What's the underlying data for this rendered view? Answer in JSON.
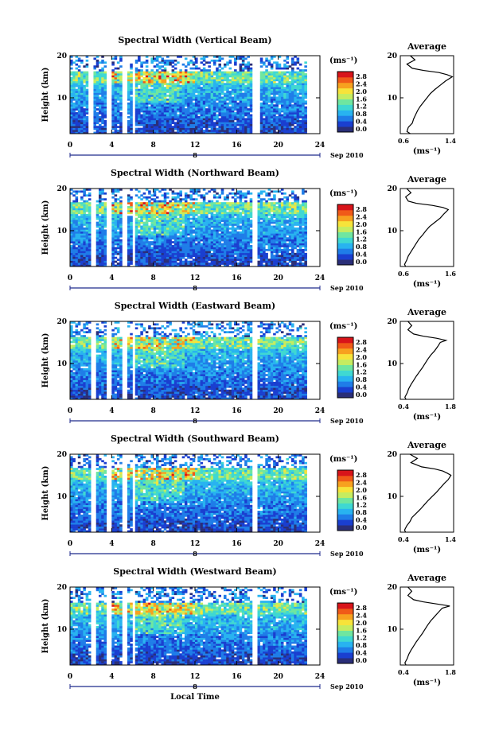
{
  "x_axis_label": "Local Time",
  "date_label": "Sep 2010",
  "date_center_label": "8",
  "y_axis_label": "Height (km)",
  "colorbar_unit": "(ms⁻¹)",
  "colorbar_ticks": [
    "2.8",
    "2.4",
    "2.0",
    "1.6",
    "1.2",
    "0.8",
    "0.4",
    "0.0"
  ],
  "average_title": "Average",
  "average_xlabel": "(ms⁻¹)",
  "colors": {
    "colormap": [
      "#2a2e78",
      "#1a3fd0",
      "#1f7de8",
      "#28b3f0",
      "#3fd8d2",
      "#6fe6a0",
      "#c6ec60",
      "#f7e33a",
      "#f7a11f",
      "#f05a18",
      "#d8141a"
    ],
    "profile_line": "#000000"
  },
  "chart_data": [
    {
      "type": "heatmap",
      "title": "Spectral Width (Vertical Beam)",
      "xlim": [
        0,
        24
      ],
      "ylim": [
        1.5,
        20
      ],
      "x_ticks": [
        0,
        4,
        8,
        12,
        16,
        20,
        24
      ],
      "y_ticks": [
        10,
        20
      ],
      "value_range": [
        0.0,
        3.0
      ],
      "data_gaps": [
        [
          1.8,
          2.2
        ],
        [
          3.6,
          4.0
        ],
        [
          5.0,
          5.4
        ],
        [
          5.9,
          6.2
        ],
        [
          17.6,
          18.2
        ]
      ],
      "profile": {
        "title": "Average",
        "xlim": [
          0.6,
          1.4
        ],
        "x_ticks": [
          "0.6",
          "1.4"
        ],
        "height": [
          1.5,
          2,
          3,
          4,
          5,
          6,
          7,
          8,
          9,
          10,
          11,
          12,
          13,
          14,
          15,
          15.5,
          16,
          16.5,
          17,
          18,
          19,
          20
        ],
        "value": [
          0.75,
          0.7,
          0.72,
          0.78,
          0.8,
          0.83,
          0.86,
          0.9,
          0.95,
          1.0,
          1.05,
          1.12,
          1.2,
          1.28,
          1.38,
          1.3,
          1.18,
          0.95,
          0.78,
          0.7,
          0.82,
          0.75
        ]
      }
    },
    {
      "type": "heatmap",
      "title": "Spectral Width (Northward Beam)",
      "xlim": [
        0,
        24
      ],
      "ylim": [
        1.5,
        20
      ],
      "x_ticks": [
        0,
        4,
        8,
        12,
        16,
        20,
        24
      ],
      "y_ticks": [
        10,
        20
      ],
      "value_range": [
        0.0,
        3.0
      ],
      "data_gaps": [
        [
          2.0,
          2.4
        ],
        [
          3.6,
          4.0
        ],
        [
          5.0,
          5.4
        ],
        [
          5.9,
          6.2
        ],
        [
          17.6,
          18.0
        ]
      ],
      "profile": {
        "title": "Average",
        "xlim": [
          0.6,
          1.6
        ],
        "x_ticks": [
          "0.6",
          "1.6"
        ],
        "height": [
          1.5,
          2,
          3,
          4,
          5,
          6,
          7,
          8,
          9,
          10,
          11,
          12,
          13,
          14,
          15,
          15.5,
          16,
          16.5,
          17,
          18,
          19,
          20
        ],
        "value": [
          0.7,
          0.68,
          0.72,
          0.75,
          0.8,
          0.85,
          0.9,
          0.95,
          1.02,
          1.08,
          1.15,
          1.25,
          1.35,
          1.42,
          1.5,
          1.4,
          1.2,
          0.9,
          0.75,
          0.7,
          0.8,
          0.72
        ]
      }
    },
    {
      "type": "heatmap",
      "title": "Spectral Width (Eastward Beam)",
      "xlim": [
        0,
        24
      ],
      "ylim": [
        1.5,
        20
      ],
      "x_ticks": [
        0,
        4,
        8,
        12,
        16,
        20,
        24
      ],
      "y_ticks": [
        10,
        20
      ],
      "value_range": [
        0.0,
        3.0
      ],
      "data_gaps": [
        [
          2.0,
          2.4
        ],
        [
          3.6,
          4.0
        ],
        [
          5.0,
          5.4
        ],
        [
          5.9,
          6.2
        ],
        [
          17.6,
          18.0
        ]
      ],
      "profile": {
        "title": "Average",
        "xlim": [
          0.4,
          1.8
        ],
        "x_ticks": [
          "0.4",
          "1.8"
        ],
        "height": [
          1.5,
          2,
          3,
          4,
          5,
          6,
          7,
          8,
          9,
          10,
          11,
          12,
          13,
          14,
          15,
          15.5,
          16,
          16.5,
          17,
          18,
          19,
          20
        ],
        "value": [
          0.55,
          0.52,
          0.58,
          0.62,
          0.68,
          0.75,
          0.82,
          0.9,
          0.98,
          1.05,
          1.12,
          1.2,
          1.3,
          1.38,
          1.45,
          1.6,
          1.35,
          1.0,
          0.75,
          0.6,
          0.7,
          0.6
        ]
      }
    },
    {
      "type": "heatmap",
      "title": "Spectral Width (Southward Beam)",
      "xlim": [
        0,
        24
      ],
      "ylim": [
        1.5,
        20
      ],
      "x_ticks": [
        0,
        4,
        8,
        12,
        16,
        20,
        24
      ],
      "y_ticks": [
        10,
        20
      ],
      "value_range": [
        0.0,
        3.0
      ],
      "data_gaps": [
        [
          2.0,
          2.4
        ],
        [
          3.6,
          4.0
        ],
        [
          5.0,
          5.4
        ],
        [
          5.9,
          6.2
        ],
        [
          17.6,
          18.0
        ]
      ],
      "profile": {
        "title": "Average",
        "xlim": [
          0.4,
          1.4
        ],
        "x_ticks": [
          "0.4",
          "1.4"
        ],
        "height": [
          1.5,
          2,
          3,
          4,
          5,
          6,
          7,
          8,
          9,
          10,
          11,
          12,
          13,
          14,
          15,
          15.5,
          16,
          16.5,
          17,
          18,
          19,
          20
        ],
        "value": [
          0.5,
          0.48,
          0.52,
          0.58,
          0.62,
          0.7,
          0.78,
          0.85,
          0.92,
          1.0,
          1.08,
          1.15,
          1.22,
          1.3,
          1.35,
          1.28,
          1.2,
          1.05,
          0.8,
          0.6,
          0.72,
          0.58
        ]
      }
    },
    {
      "type": "heatmap",
      "title": "Spectral Width (Westward Beam)",
      "xlim": [
        0,
        24
      ],
      "ylim": [
        1.5,
        20
      ],
      "x_ticks": [
        0,
        4,
        8,
        12,
        16,
        20,
        24
      ],
      "y_ticks": [
        10,
        20
      ],
      "value_range": [
        0.0,
        3.0
      ],
      "data_gaps": [
        [
          2.0,
          2.4
        ],
        [
          3.6,
          4.0
        ],
        [
          5.0,
          5.4
        ],
        [
          5.9,
          6.2
        ],
        [
          17.6,
          18.0
        ]
      ],
      "profile": {
        "title": "Average",
        "xlim": [
          0.4,
          1.8
        ],
        "x_ticks": [
          "0.4",
          "1.8"
        ],
        "height": [
          1.5,
          2,
          3,
          4,
          5,
          6,
          7,
          8,
          9,
          10,
          11,
          12,
          13,
          14,
          15,
          15.5,
          16,
          16.5,
          17,
          18,
          19,
          20
        ],
        "value": [
          0.55,
          0.52,
          0.58,
          0.62,
          0.68,
          0.75,
          0.82,
          0.9,
          0.98,
          1.05,
          1.12,
          1.2,
          1.3,
          1.4,
          1.5,
          1.7,
          1.35,
          1.0,
          0.75,
          0.6,
          0.7,
          0.6
        ]
      }
    }
  ]
}
